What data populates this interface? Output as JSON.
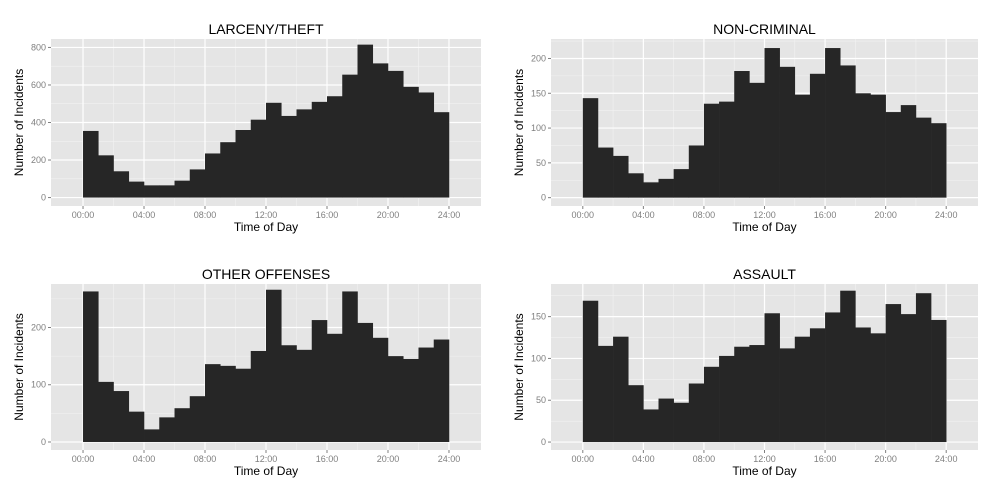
{
  "chart_data": [
    {
      "type": "bar",
      "title": "LARCENY/THEFT",
      "xlabel": "Time of Day",
      "ylabel": "Number of Incidents",
      "xticks": [
        "00:00",
        "04:00",
        "08:00",
        "12:00",
        "16:00",
        "20:00",
        "24:00"
      ],
      "yticks": [
        0,
        200,
        400,
        600,
        800
      ],
      "ylim": [
        -45,
        845
      ],
      "xlim_hours": [
        -2.1,
        26.1
      ],
      "bin_width_hours": 1,
      "bin_start_hours": [
        0,
        1,
        2,
        3,
        4,
        5,
        6,
        7,
        8,
        9,
        10,
        11,
        12,
        13,
        14,
        15,
        16,
        17,
        18,
        19,
        20,
        21,
        22,
        23
      ],
      "values": [
        355,
        225,
        140,
        85,
        65,
        65,
        90,
        150,
        235,
        295,
        360,
        415,
        505,
        435,
        470,
        510,
        540,
        655,
        815,
        715,
        675,
        590,
        560,
        455
      ],
      "grid": true,
      "bar_color": "#262626",
      "panel_bg": "#e5e5e5"
    },
    {
      "type": "bar",
      "title": "NON-CRIMINAL",
      "xlabel": "Time of Day",
      "ylabel": "Number of Incidents",
      "xticks": [
        "00:00",
        "04:00",
        "08:00",
        "12:00",
        "16:00",
        "20:00",
        "24:00"
      ],
      "yticks": [
        0,
        50,
        100,
        150,
        200
      ],
      "ylim": [
        -12,
        228
      ],
      "xlim_hours": [
        -2.1,
        26.1
      ],
      "bin_width_hours": 1,
      "bin_start_hours": [
        0,
        1,
        2,
        3,
        4,
        5,
        6,
        7,
        8,
        9,
        10,
        11,
        12,
        13,
        14,
        15,
        16,
        17,
        18,
        19,
        20,
        21,
        22,
        23
      ],
      "values": [
        143,
        72,
        60,
        35,
        22,
        27,
        41,
        75,
        135,
        138,
        182,
        165,
        215,
        188,
        148,
        178,
        215,
        190,
        150,
        148,
        123,
        133,
        115,
        107
      ],
      "grid": true,
      "bar_color": "#262626",
      "panel_bg": "#e5e5e5"
    },
    {
      "type": "bar",
      "title": "OTHER OFFENSES",
      "xlabel": "Time of Day",
      "ylabel": "Number of Incidents",
      "xticks": [
        "00:00",
        "04:00",
        "08:00",
        "12:00",
        "16:00",
        "20:00",
        "24:00"
      ],
      "yticks": [
        0,
        100,
        200
      ],
      "ylim": [
        -14,
        276
      ],
      "xlim_hours": [
        -2.1,
        26.1
      ],
      "bin_width_hours": 1,
      "bin_start_hours": [
        0,
        1,
        2,
        3,
        4,
        5,
        6,
        7,
        8,
        9,
        10,
        11,
        12,
        13,
        14,
        15,
        16,
        17,
        18,
        19,
        20,
        21,
        22,
        23
      ],
      "values": [
        263,
        105,
        89,
        53,
        22,
        43,
        59,
        80,
        136,
        133,
        128,
        159,
        266,
        169,
        161,
        213,
        189,
        263,
        208,
        182,
        150,
        145,
        165,
        179
      ],
      "grid": true,
      "bar_color": "#262626",
      "panel_bg": "#e5e5e5"
    },
    {
      "type": "bar",
      "title": "ASSAULT",
      "xlabel": "Time of Day",
      "ylabel": "Number of Incidents",
      "xticks": [
        "00:00",
        "04:00",
        "08:00",
        "12:00",
        "16:00",
        "20:00",
        "24:00"
      ],
      "yticks": [
        0,
        50,
        100,
        150
      ],
      "ylim": [
        -9.5,
        189
      ],
      "xlim_hours": [
        -2.1,
        26.1
      ],
      "bin_width_hours": 1,
      "bin_start_hours": [
        0,
        1,
        2,
        3,
        4,
        5,
        6,
        7,
        8,
        9,
        10,
        11,
        12,
        13,
        14,
        15,
        16,
        17,
        18,
        19,
        20,
        21,
        22,
        23
      ],
      "values": [
        169,
        115,
        126,
        68,
        39,
        52,
        47,
        70,
        90,
        103,
        114,
        116,
        154,
        112,
        126,
        136,
        155,
        181,
        137,
        130,
        165,
        153,
        178,
        146
      ],
      "grid": true,
      "bar_color": "#262626",
      "panel_bg": "#e5e5e5"
    }
  ]
}
